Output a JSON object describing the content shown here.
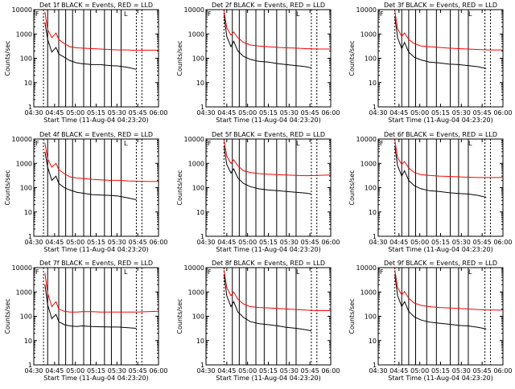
{
  "page": {
    "time_axis_label": "Start Time (11-Aug-04 04:23:20)",
    "y_axis_label": "Counts/sec"
  },
  "colors": {
    "events": "#000000",
    "lld": "#ff0000",
    "axes": "#000000"
  },
  "chart_data": [
    {
      "type": "line",
      "title": "Det 1f BLACK = Events, RED = LLD",
      "xlabel": "Start Time (11-Aug-04 04:23:20)",
      "ylabel": "Counts/sec",
      "x_ticks": [
        "04:30",
        "04:45",
        "05:00",
        "05:15",
        "05:30",
        "05:45",
        "06:00"
      ],
      "y_ticks": [
        "1",
        "10",
        "100",
        "1000",
        "10000"
      ],
      "ylim": [
        1,
        10000
      ],
      "log_y": true,
      "vlines_solid": [
        "04:40",
        "04:48",
        "04:53",
        "04:58",
        "05:06",
        "05:11",
        "05:21",
        "05:26",
        "05:33"
      ],
      "vlines_dashed": [
        "04:37",
        "05:44",
        "05:48"
      ],
      "legend_markers": [
        "F",
        "L"
      ],
      "series": [
        {
          "name": "BLACK = Events",
          "x": [
            "04:38",
            "04:40",
            "04:43",
            "04:46",
            "04:48",
            "04:52",
            "04:56",
            "05:01",
            "05:05",
            "05:12",
            "05:18",
            "05:25",
            "05:31",
            "05:38",
            "05:44"
          ],
          "y": [
            3000,
            600,
            180,
            280,
            150,
            110,
            80,
            65,
            60,
            55,
            55,
            50,
            48,
            42,
            35
          ]
        },
        {
          "name": "RED = LLD",
          "x": [
            "04:38",
            "04:40",
            "04:43",
            "04:46",
            "04:48",
            "04:52",
            "04:56",
            "05:01",
            "05:05",
            "05:12",
            "05:18",
            "05:25",
            "05:31",
            "05:38",
            "05:44",
            "05:52",
            "06:00"
          ],
          "y": [
            8000,
            1500,
            700,
            1100,
            600,
            400,
            300,
            270,
            260,
            250,
            240,
            230,
            220,
            220,
            210,
            215,
            215
          ]
        }
      ]
    },
    {
      "type": "line",
      "title": "Det 2f BLACK = Events, RED = LLD",
      "xlabel": "Start Time (11-Aug-04 04:23:20)",
      "ylabel": "Counts/sec",
      "x_ticks": [
        "04:30",
        "04:45",
        "05:00",
        "05:15",
        "05:30",
        "05:45",
        "06:00"
      ],
      "y_ticks": [
        "1",
        "10",
        "100",
        "1000",
        "10000"
      ],
      "ylim": [
        1,
        10000
      ],
      "log_y": true,
      "vlines_solid": [
        "04:49",
        "04:54",
        "04:59",
        "05:06",
        "05:12",
        "05:21",
        "05:28",
        "05:35"
      ],
      "vlines_dashed": [
        "04:43",
        "05:46",
        "05:50"
      ],
      "legend_markers": [
        "F",
        "L"
      ],
      "series": [
        {
          "name": "BLACK = Events",
          "x": [
            "04:43",
            "04:45",
            "04:48",
            "04:50",
            "04:53",
            "04:57",
            "05:02",
            "05:08",
            "05:15",
            "05:22",
            "05:28",
            "05:35",
            "05:42",
            "05:46"
          ],
          "y": [
            6000,
            800,
            300,
            500,
            200,
            120,
            90,
            75,
            70,
            60,
            55,
            50,
            45,
            40
          ]
        },
        {
          "name": "RED = LLD",
          "x": [
            "04:43",
            "04:45",
            "04:48",
            "04:50",
            "04:53",
            "04:57",
            "05:02",
            "05:08",
            "05:15",
            "05:22",
            "05:28",
            "05:35",
            "05:42",
            "05:50",
            "06:00"
          ],
          "y": [
            9000,
            1800,
            900,
            1200,
            700,
            450,
            350,
            320,
            300,
            280,
            270,
            260,
            250,
            240,
            240
          ]
        }
      ]
    },
    {
      "type": "line",
      "title": "Det 3f BLACK = Events, RED = LLD",
      "xlabel": "Start Time (11-Aug-04 04:23:20)",
      "ylabel": "Counts/sec",
      "x_ticks": [
        "04:30",
        "04:45",
        "05:00",
        "05:15",
        "05:30",
        "05:45",
        "06:00"
      ],
      "y_ticks": [
        "1",
        "10",
        "100",
        "1000",
        "10000"
      ],
      "ylim": [
        1,
        10000
      ],
      "log_y": true,
      "vlines_solid": [
        "04:47",
        "04:52",
        "04:57",
        "05:05",
        "05:12",
        "05:22",
        "05:28",
        "05:35"
      ],
      "vlines_dashed": [
        "04:42",
        "05:47",
        "05:51"
      ],
      "legend_markers": [
        "F",
        "L"
      ],
      "series": [
        {
          "name": "BLACK = Events",
          "x": [
            "04:42",
            "04:44",
            "04:47",
            "04:49",
            "04:52",
            "04:56",
            "05:01",
            "05:07",
            "05:14",
            "05:21",
            "05:28",
            "05:35",
            "05:42",
            "05:48"
          ],
          "y": [
            5000,
            700,
            250,
            450,
            180,
            110,
            85,
            70,
            65,
            58,
            55,
            50,
            45,
            38
          ]
        },
        {
          "name": "RED = LLD",
          "x": [
            "04:42",
            "04:44",
            "04:47",
            "04:49",
            "04:52",
            "04:56",
            "05:01",
            "05:07",
            "05:14",
            "05:21",
            "05:28",
            "05:35",
            "05:42",
            "05:50",
            "06:00"
          ],
          "y": [
            9000,
            1600,
            800,
            1100,
            600,
            400,
            320,
            300,
            280,
            260,
            250,
            240,
            230,
            220,
            220
          ]
        }
      ]
    },
    {
      "type": "line",
      "title": "Det 4f BLACK = Events, RED = LLD",
      "xlabel": "Start Time (11-Aug-04 04:23:20)",
      "ylabel": "Counts/sec",
      "x_ticks": [
        "04:30",
        "04:45",
        "05:00",
        "05:15",
        "05:30",
        "05:45",
        "06:00"
      ],
      "y_ticks": [
        "1",
        "10",
        "100",
        "1000",
        "10000"
      ],
      "ylim": [
        1,
        10000
      ],
      "log_y": true,
      "vlines_solid": [
        "04:40",
        "04:48",
        "04:53",
        "04:58",
        "05:06",
        "05:11",
        "05:21",
        "05:26",
        "05:33"
      ],
      "vlines_dashed": [
        "04:37",
        "05:44",
        "05:48"
      ],
      "legend_markers": [
        "F",
        "L"
      ],
      "series": [
        {
          "name": "BLACK = Events",
          "x": [
            "04:38",
            "04:40",
            "04:43",
            "04:46",
            "04:48",
            "04:52",
            "04:56",
            "05:01",
            "05:05",
            "05:12",
            "05:18",
            "05:25",
            "05:31",
            "05:38",
            "05:44"
          ],
          "y": [
            3000,
            700,
            200,
            300,
            150,
            100,
            80,
            65,
            60,
            52,
            50,
            48,
            45,
            38,
            32
          ]
        },
        {
          "name": "RED = LLD",
          "x": [
            "04:38",
            "04:40",
            "04:43",
            "04:46",
            "04:48",
            "04:52",
            "04:56",
            "05:01",
            "05:05",
            "05:12",
            "05:18",
            "05:25",
            "05:31",
            "05:38",
            "05:44",
            "05:52",
            "06:00"
          ],
          "y": [
            7000,
            1500,
            700,
            1000,
            550,
            380,
            280,
            250,
            240,
            220,
            210,
            200,
            200,
            190,
            185,
            180,
            180
          ]
        }
      ]
    },
    {
      "type": "line",
      "title": "Det 5f BLACK = Events, RED = LLD",
      "xlabel": "Start Time (11-Aug-04 04:23:20)",
      "ylabel": "Counts/sec",
      "x_ticks": [
        "04:30",
        "04:45",
        "05:00",
        "05:15",
        "05:30",
        "05:45",
        "06:00"
      ],
      "y_ticks": [
        "1",
        "10",
        "100",
        "1000",
        "10000"
      ],
      "ylim": [
        1,
        10000
      ],
      "log_y": true,
      "vlines_solid": [
        "04:49",
        "04:54",
        "04:59",
        "05:06",
        "05:12",
        "05:21",
        "05:28",
        "05:35"
      ],
      "vlines_dashed": [
        "04:43",
        "05:46",
        "05:50"
      ],
      "legend_markers": [
        "F",
        "L"
      ],
      "series": [
        {
          "name": "BLACK = Events",
          "x": [
            "04:43",
            "04:45",
            "04:48",
            "04:50",
            "04:53",
            "04:57",
            "05:02",
            "05:08",
            "05:15",
            "05:22",
            "05:28",
            "05:35",
            "05:42",
            "05:46"
          ],
          "y": [
            5000,
            900,
            400,
            600,
            250,
            150,
            110,
            90,
            80,
            75,
            70,
            65,
            60,
            55
          ]
        },
        {
          "name": "RED = LLD",
          "x": [
            "04:43",
            "04:45",
            "04:48",
            "04:50",
            "04:53",
            "04:57",
            "05:02",
            "05:08",
            "05:15",
            "05:22",
            "05:28",
            "05:35",
            "05:42",
            "05:50",
            "06:00"
          ],
          "y": [
            9000,
            2000,
            1000,
            1400,
            800,
            500,
            420,
            380,
            360,
            340,
            330,
            320,
            310,
            320,
            330
          ]
        }
      ]
    },
    {
      "type": "line",
      "title": "Det 6f BLACK = Events, RED = LLD",
      "xlabel": "Start Time (11-Aug-04 04:23:20)",
      "ylabel": "Counts/sec",
      "x_ticks": [
        "04:30",
        "04:45",
        "05:00",
        "05:15",
        "05:30",
        "05:45",
        "06:00"
      ],
      "y_ticks": [
        "1",
        "10",
        "100",
        "1000",
        "10000"
      ],
      "ylim": [
        1,
        10000
      ],
      "log_y": true,
      "vlines_solid": [
        "04:47",
        "04:52",
        "04:57",
        "05:05",
        "05:12",
        "05:22",
        "05:28",
        "05:35"
      ],
      "vlines_dashed": [
        "04:42",
        "05:47",
        "05:51"
      ],
      "legend_markers": [
        "F",
        "L"
      ],
      "series": [
        {
          "name": "BLACK = Events",
          "x": [
            "04:42",
            "04:44",
            "04:47",
            "04:49",
            "04:52",
            "04:56",
            "05:01",
            "05:07",
            "05:14",
            "05:21",
            "05:28",
            "05:35",
            "05:42",
            "05:48"
          ],
          "y": [
            5000,
            800,
            300,
            500,
            200,
            120,
            90,
            75,
            70,
            62,
            58,
            55,
            48,
            40
          ]
        },
        {
          "name": "RED = LLD",
          "x": [
            "04:42",
            "04:44",
            "04:47",
            "04:49",
            "04:52",
            "04:56",
            "05:01",
            "05:07",
            "05:14",
            "05:21",
            "05:28",
            "05:35",
            "05:42",
            "05:50",
            "06:00"
          ],
          "y": [
            9000,
            1700,
            900,
            1200,
            650,
            420,
            340,
            320,
            300,
            290,
            280,
            270,
            260,
            260,
            260
          ]
        }
      ]
    },
    {
      "type": "line",
      "title": "Det 7f BLACK = Events, RED = LLD",
      "xlabel": "Start Time (11-Aug-04 04:23:20)",
      "ylabel": "Counts/sec",
      "x_ticks": [
        "04:30",
        "04:45",
        "05:00",
        "05:15",
        "05:30",
        "05:45",
        "06:00"
      ],
      "y_ticks": [
        "1",
        "10",
        "100",
        "1000",
        "10000"
      ],
      "ylim": [
        1,
        10000
      ],
      "log_y": true,
      "vlines_solid": [
        "04:40",
        "04:48",
        "04:53",
        "04:58",
        "05:06",
        "05:11",
        "05:21",
        "05:26",
        "05:33"
      ],
      "vlines_dashed": [
        "04:37",
        "05:44",
        "05:48"
      ],
      "legend_markers": [
        "F",
        "L"
      ],
      "series": [
        {
          "name": "BLACK = Events",
          "x": [
            "04:38",
            "04:40",
            "04:43",
            "04:46",
            "04:48",
            "04:52",
            "04:56",
            "05:01",
            "05:05",
            "05:12",
            "05:18",
            "05:25",
            "05:31",
            "05:38",
            "05:44"
          ],
          "y": [
            2000,
            300,
            80,
            120,
            60,
            45,
            40,
            38,
            40,
            38,
            37,
            36,
            36,
            34,
            32
          ]
        },
        {
          "name": "RED = LLD",
          "x": [
            "04:38",
            "04:40",
            "04:43",
            "04:46",
            "04:48",
            "04:52",
            "04:56",
            "05:01",
            "05:05",
            "05:12",
            "05:18",
            "05:25",
            "05:31",
            "05:38",
            "05:44",
            "05:52",
            "06:00"
          ],
          "y": [
            6000,
            900,
            250,
            400,
            200,
            160,
            150,
            150,
            155,
            155,
            150,
            150,
            150,
            150,
            150,
            155,
            160
          ]
        }
      ]
    },
    {
      "type": "line",
      "title": "Det 8f BLACK = Events, RED = LLD",
      "xlabel": "Start Time (11-Aug-04 04:23:20)",
      "ylabel": "Counts/sec",
      "x_ticks": [
        "04:30",
        "04:45",
        "05:00",
        "05:15",
        "05:30",
        "05:45",
        "06:00"
      ],
      "y_ticks": [
        "1",
        "10",
        "100",
        "1000",
        "10000"
      ],
      "ylim": [
        1,
        10000
      ],
      "log_y": true,
      "vlines_solid": [
        "04:49",
        "04:54",
        "04:59",
        "05:06",
        "05:12",
        "05:21",
        "05:28",
        "05:35"
      ],
      "vlines_dashed": [
        "04:43",
        "05:46",
        "05:50"
      ],
      "legend_markers": [
        "F",
        "L"
      ],
      "series": [
        {
          "name": "BLACK = Events",
          "x": [
            "04:43",
            "04:45",
            "04:48",
            "04:50",
            "04:53",
            "04:57",
            "05:02",
            "05:08",
            "05:15",
            "05:22",
            "05:28",
            "05:35",
            "05:42",
            "05:46"
          ],
          "y": [
            5000,
            700,
            250,
            400,
            150,
            90,
            60,
            50,
            45,
            40,
            35,
            32,
            28,
            25
          ]
        },
        {
          "name": "RED = LLD",
          "x": [
            "04:43",
            "04:45",
            "04:48",
            "04:50",
            "04:53",
            "04:57",
            "05:02",
            "05:08",
            "05:15",
            "05:22",
            "05:28",
            "05:35",
            "05:42",
            "05:50",
            "06:00"
          ],
          "y": [
            8000,
            1500,
            700,
            1000,
            500,
            320,
            250,
            230,
            220,
            210,
            200,
            190,
            180,
            170,
            170
          ]
        }
      ]
    },
    {
      "type": "line",
      "title": "Det 9f BLACK = Events, RED = LLD",
      "xlabel": "Start Time (11-Aug-04 04:23:20)",
      "ylabel": "Counts/sec",
      "x_ticks": [
        "04:30",
        "04:45",
        "05:00",
        "05:15",
        "05:30",
        "05:45",
        "06:00"
      ],
      "y_ticks": [
        "1",
        "10",
        "100",
        "1000",
        "10000"
      ],
      "ylim": [
        1,
        10000
      ],
      "log_y": true,
      "vlines_solid": [
        "04:47",
        "04:52",
        "04:57",
        "05:05",
        "05:12",
        "05:22",
        "05:28",
        "05:35"
      ],
      "vlines_dashed": [
        "04:42",
        "05:47",
        "05:51"
      ],
      "legend_markers": [
        "F",
        "L"
      ],
      "series": [
        {
          "name": "BLACK = Events",
          "x": [
            "04:42",
            "04:44",
            "04:47",
            "04:49",
            "04:52",
            "04:56",
            "05:01",
            "05:07",
            "05:14",
            "05:21",
            "05:28",
            "05:35",
            "05:42",
            "05:48"
          ],
          "y": [
            5000,
            700,
            250,
            400,
            160,
            95,
            70,
            58,
            52,
            47,
            42,
            40,
            35,
            30
          ]
        },
        {
          "name": "RED = LLD",
          "x": [
            "04:42",
            "04:44",
            "04:47",
            "04:49",
            "04:52",
            "04:56",
            "05:01",
            "05:07",
            "05:14",
            "05:21",
            "05:28",
            "05:35",
            "05:42",
            "05:50",
            "06:00"
          ],
          "y": [
            8000,
            1500,
            750,
            1050,
            550,
            350,
            280,
            250,
            230,
            220,
            210,
            200,
            190,
            180,
            180
          ]
        }
      ]
    }
  ]
}
